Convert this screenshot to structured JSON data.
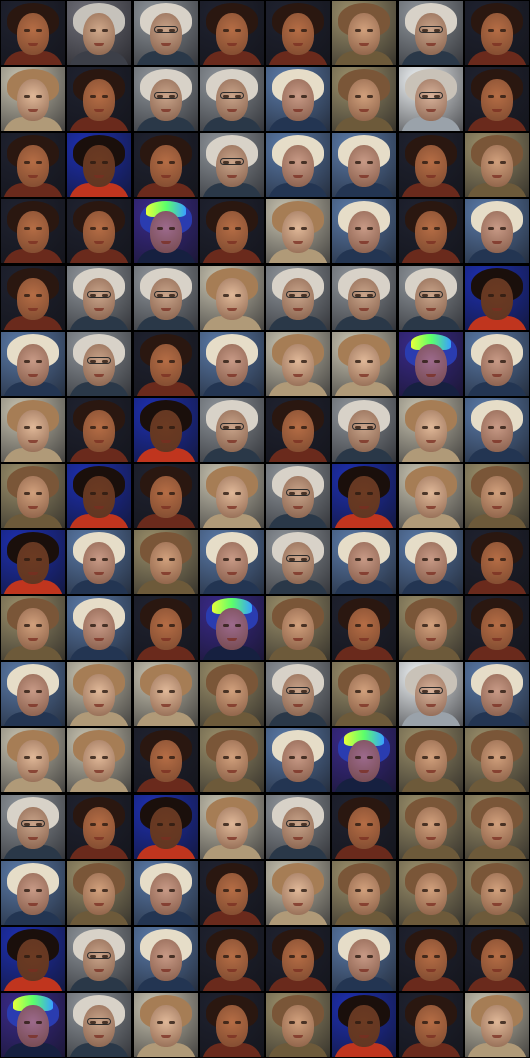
{
  "grid": {
    "rows": 16,
    "cols": 8,
    "cells": [
      [
        "dark",
        "pale",
        "glasses",
        "dark",
        "dark",
        "tan",
        "glasses",
        "dark"
      ],
      [
        "light",
        "dark",
        "glasses",
        "glasses",
        "colorful",
        "tan",
        "white-glasses",
        "dark"
      ],
      [
        "dark",
        "red-dark",
        "dark",
        "glasses",
        "colorful",
        "colorful",
        "dark",
        "tan"
      ],
      [
        "dark",
        "dark",
        "cap",
        "dark",
        "light",
        "colorful",
        "dark",
        "colorful"
      ],
      [
        "dark",
        "glasses",
        "glasses",
        "light",
        "glasses",
        "glasses",
        "glasses",
        "red-dark"
      ],
      [
        "colorful",
        "glasses",
        "dark",
        "colorful",
        "light",
        "light",
        "cap",
        "colorful"
      ],
      [
        "light",
        "dark",
        "red-dark",
        "glasses",
        "dark",
        "glasses",
        "light",
        "colorful"
      ],
      [
        "tan",
        "red-dark",
        "dark",
        "light",
        "glasses",
        "red-dark",
        "light",
        "tan"
      ],
      [
        "red-dark",
        "colorful",
        "tan",
        "colorful",
        "glasses",
        "colorful",
        "colorful",
        "dark"
      ],
      [
        "tan",
        "colorful",
        "dark",
        "cap",
        "tan",
        "dark",
        "tan",
        "dark"
      ],
      [
        "colorful",
        "light",
        "light",
        "tan",
        "glasses",
        "tan",
        "white-glasses",
        "colorful"
      ],
      [
        "light",
        "light",
        "dark",
        "tan",
        "colorful",
        "cap",
        "tan",
        "tan"
      ],
      [
        "glasses",
        "dark",
        "red-dark",
        "light",
        "glasses",
        "dark",
        "tan",
        "tan"
      ],
      [
        "colorful",
        "tan",
        "colorful",
        "dark",
        "light",
        "tan",
        "tan",
        "tan"
      ],
      [
        "red-dark",
        "glasses",
        "colorful",
        "dark",
        "dark",
        "colorful",
        "dark",
        "dark"
      ],
      [
        "cap",
        "glasses",
        "light",
        "dark",
        "tan",
        "red-dark",
        "dark",
        "light"
      ]
    ]
  },
  "palette": {
    "dark": {
      "bg": "#1f2230",
      "hair": "#2a1710",
      "skin": "#b56d45",
      "shoulder": "#6a2a1c"
    },
    "red-dark": {
      "bg": "#1d2fb0",
      "hair": "#1a0f0b",
      "skin": "#6b3a22",
      "shoulder": "#c0351e"
    },
    "pale": {
      "bg": "#6f6f78",
      "hair": "#c6c2bb",
      "skin": "#cfa88a",
      "shoulder": "#3c3f48"
    },
    "glasses": {
      "bg": "#8f959b",
      "hair": "#d8d2c8",
      "skin": "#c9a48a",
      "shoulder": "#2a3848"
    },
    "white-glasses": {
      "bg": "#eef2f4",
      "hair": "#c9c2b8",
      "skin": "#d8b29a",
      "shoulder": "#9aa2aa"
    },
    "tan": {
      "bg": "#9b8f6a",
      "hair": "#7a5638",
      "skin": "#d1a07c",
      "shoulder": "#6d5a3a"
    },
    "light": {
      "bg": "#c8c3b0",
      "hair": "#a67d55",
      "skin": "#e0b898",
      "shoulder": "#b09a78"
    },
    "colorful": {
      "bg": "#5a7aa8",
      "hair": "#e6ddc8",
      "skin": "#c89a86",
      "shoulder": "#233552"
    },
    "cap": {
      "bg": "#3a2a8a",
      "hair": "#2a3cb0",
      "skin": "#9c6a8c",
      "shoulder": "#162040"
    }
  }
}
